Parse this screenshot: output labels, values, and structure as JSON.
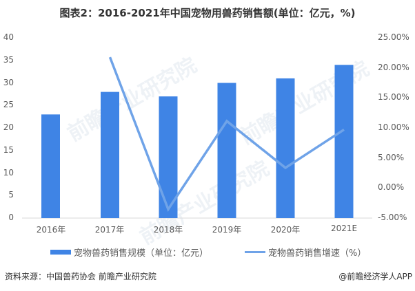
{
  "title": "图表2：2016-2021年中国宠物用兽药销售额(单位：亿元，%)",
  "chart_data": {
    "type": "bar+line",
    "title": "图表2：2016-2021年中国宠物用兽药销售额(单位：亿元，%)",
    "categories": [
      "2016年",
      "2017年",
      "2018年",
      "2019年",
      "2020年",
      "2021E"
    ],
    "series": [
      {
        "name": "宠物兽药销售规模（单位：亿元）",
        "type": "bar",
        "axis": "left",
        "color": "#3f84e5",
        "values": [
          23,
          28,
          27,
          30,
          31,
          34
        ]
      },
      {
        "name": "宠物兽药销售增速（%）",
        "type": "line",
        "axis": "right",
        "color": "#6fa3e8",
        "values": [
          null,
          21.74,
          -3.57,
          11.11,
          3.33,
          9.68
        ]
      }
    ],
    "left_axis": {
      "ylim": [
        0,
        40
      ],
      "ticks": [
        "40",
        "35",
        "30",
        "25",
        "20",
        "15",
        "10",
        "5",
        "0"
      ]
    },
    "right_axis": {
      "ylim": [
        -5,
        25
      ],
      "ticks": [
        "25.00%",
        "20.00%",
        "15.00%",
        "10.00%",
        "5.00%",
        "0.00%",
        "-5.00%"
      ]
    },
    "grid": false,
    "legend_position": "bottom"
  },
  "legend": {
    "bar_label": "宠物兽药销售规模（单位：亿元）",
    "line_label": "宠物兽药销售增速（%）"
  },
  "footer": {
    "source": "资料来源：中国兽药协会 前瞻产业研究院",
    "credit": "@前瞻经济学人APP"
  },
  "watermark": "前瞻产业研究院"
}
